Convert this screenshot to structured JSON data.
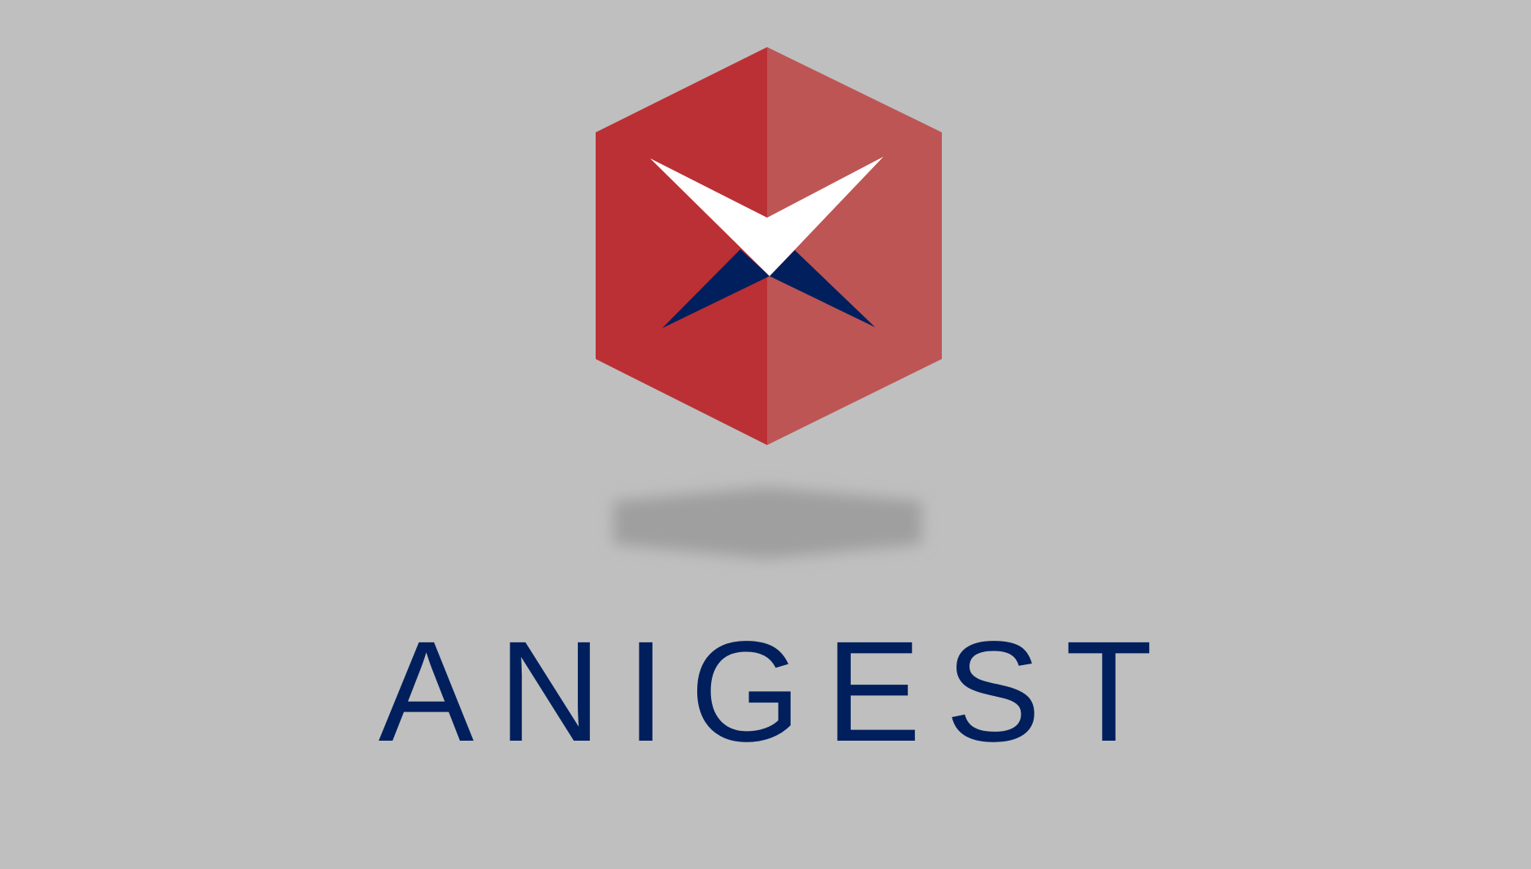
{
  "splash": {
    "brand_name": "ANIGEST",
    "logo_icon": "hexagon-chevron-logo-icon",
    "colors": {
      "background": "#bfbfbf",
      "hex_left": "#bb3034",
      "hex_right": "#bd5555",
      "chevron_top": "#ffffff",
      "chevron_bottom": "#001f5c",
      "shadow": "#9f9f9f",
      "wordmark": "#001f5c"
    }
  }
}
